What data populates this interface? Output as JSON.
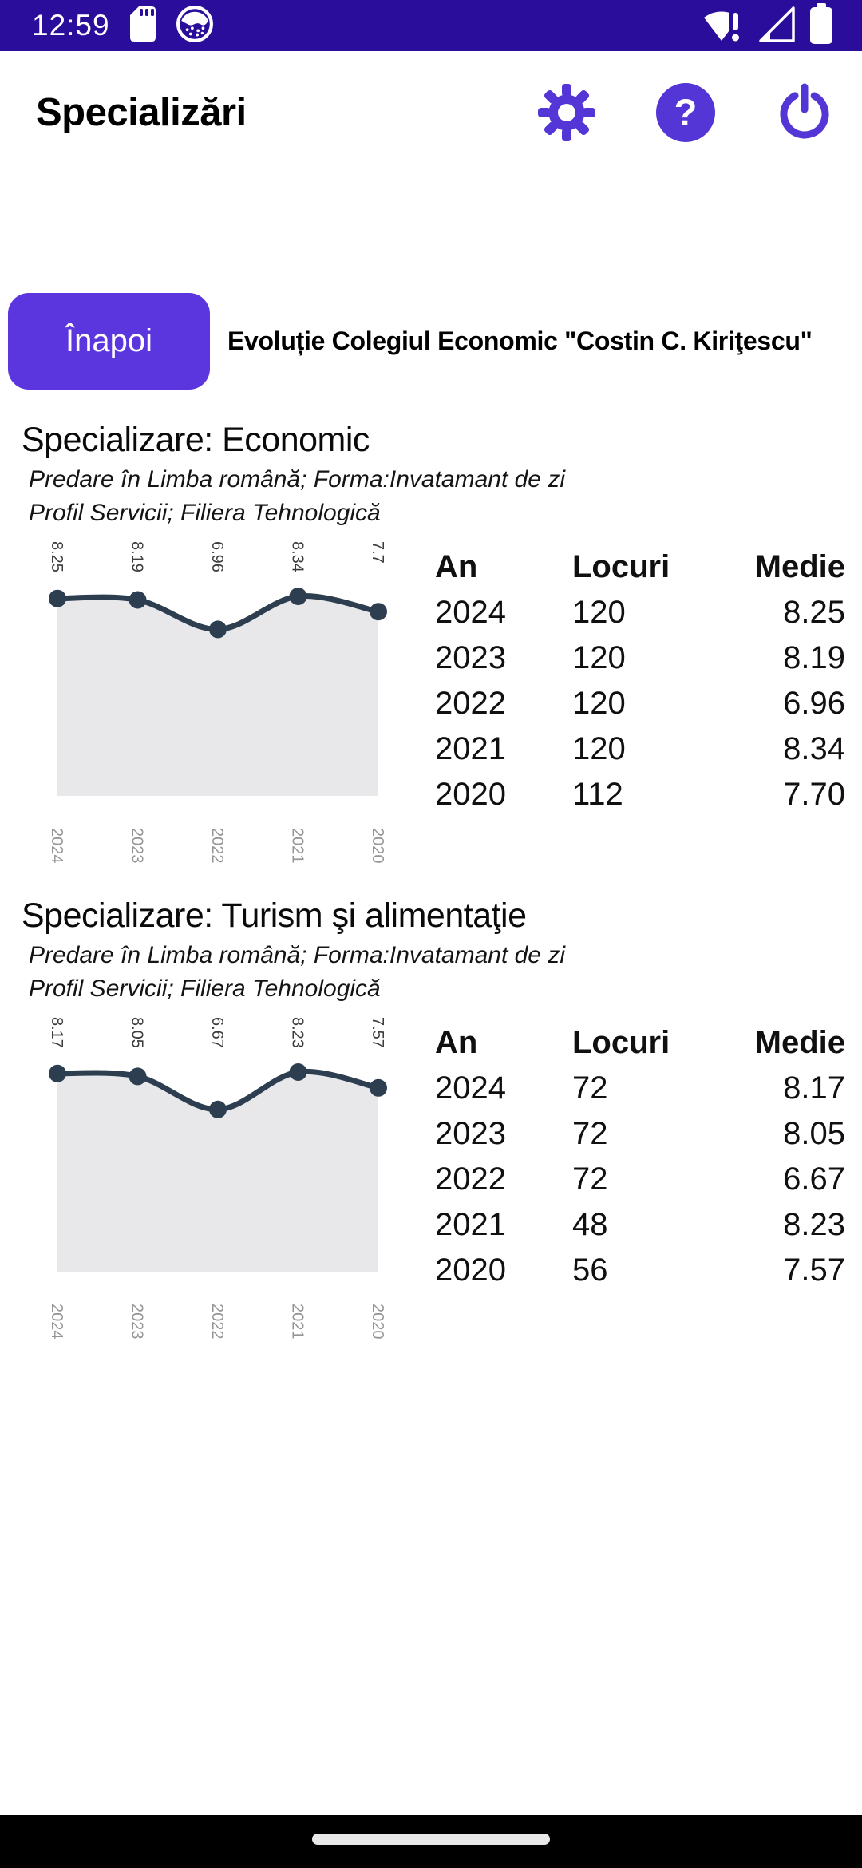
{
  "status_bar": {
    "time": "12:59",
    "left_icons": [
      "sd-card-icon",
      "app-notification-icon"
    ],
    "right_icons": [
      "wifi-alert-icon",
      "cell-signal-icon",
      "battery-icon"
    ]
  },
  "header": {
    "title": "Specializări",
    "actions": [
      "settings",
      "help",
      "power"
    ]
  },
  "toolbar": {
    "back_label": "Înapoi",
    "page_title": "Evoluție Colegiul Economic \"Costin C. Kiriţescu\""
  },
  "colors": {
    "status_bar_bg": "#2b0d9b",
    "accent_icon": "#5435d6",
    "button": "#5b35dd",
    "chart_line": "#2c3e50",
    "chart_fill": "#e8e8ea",
    "value_label": "#3c3c3c",
    "year_label": "#959595"
  },
  "table_headers": [
    "An",
    "Locuri",
    "Medie"
  ],
  "sections": [
    {
      "heading": "Specializare: Economic",
      "subtitle_line1": "Predare în Limba română; Forma:Invatamant de zi",
      "subtitle_line2": "Profil Servicii; Filiera Tehnologică",
      "rows": [
        [
          "2024",
          "120",
          "8.25"
        ],
        [
          "2023",
          "120",
          "8.19"
        ],
        [
          "2022",
          "120",
          "6.96"
        ],
        [
          "2021",
          "120",
          "8.34"
        ],
        [
          "2020",
          "112",
          "7.70"
        ]
      ]
    },
    {
      "heading": "Specializare: Turism şi alimentaţie",
      "subtitle_line1": "Predare în Limba română; Forma:Invatamant de zi",
      "subtitle_line2": "Profil Servicii; Filiera Tehnologică",
      "rows": [
        [
          "2024",
          "72",
          "8.17"
        ],
        [
          "2023",
          "72",
          "8.05"
        ],
        [
          "2022",
          "72",
          "6.67"
        ],
        [
          "2021",
          "48",
          "8.23"
        ],
        [
          "2020",
          "56",
          "7.57"
        ]
      ]
    }
  ],
  "chart_data": [
    {
      "type": "area",
      "title": "Specializare: Economic — Medie",
      "x": [
        "2024",
        "2023",
        "2022",
        "2021",
        "2020"
      ],
      "series": [
        {
          "name": "Medie",
          "values": [
            8.25,
            8.19,
            6.96,
            8.34,
            7.7
          ]
        }
      ],
      "point_labels": [
        "8.25",
        "8.19",
        "6.96",
        "8.34",
        "7.7"
      ],
      "xlabel": "",
      "ylabel": "",
      "grid": false,
      "legend": "none",
      "ylim_note": "no visible axis; area filled to baseline"
    },
    {
      "type": "area",
      "title": "Specializare: Turism şi alimentaţie — Medie",
      "x": [
        "2024",
        "2023",
        "2022",
        "2021",
        "2020"
      ],
      "series": [
        {
          "name": "Medie",
          "values": [
            8.17,
            8.05,
            6.67,
            8.23,
            7.57
          ]
        }
      ],
      "point_labels": [
        "8.17",
        "8.05",
        "6.67",
        "8.23",
        "7.57"
      ],
      "xlabel": "",
      "ylabel": "",
      "grid": false,
      "legend": "none",
      "ylim_note": "no visible axis; area filled to baseline"
    }
  ]
}
